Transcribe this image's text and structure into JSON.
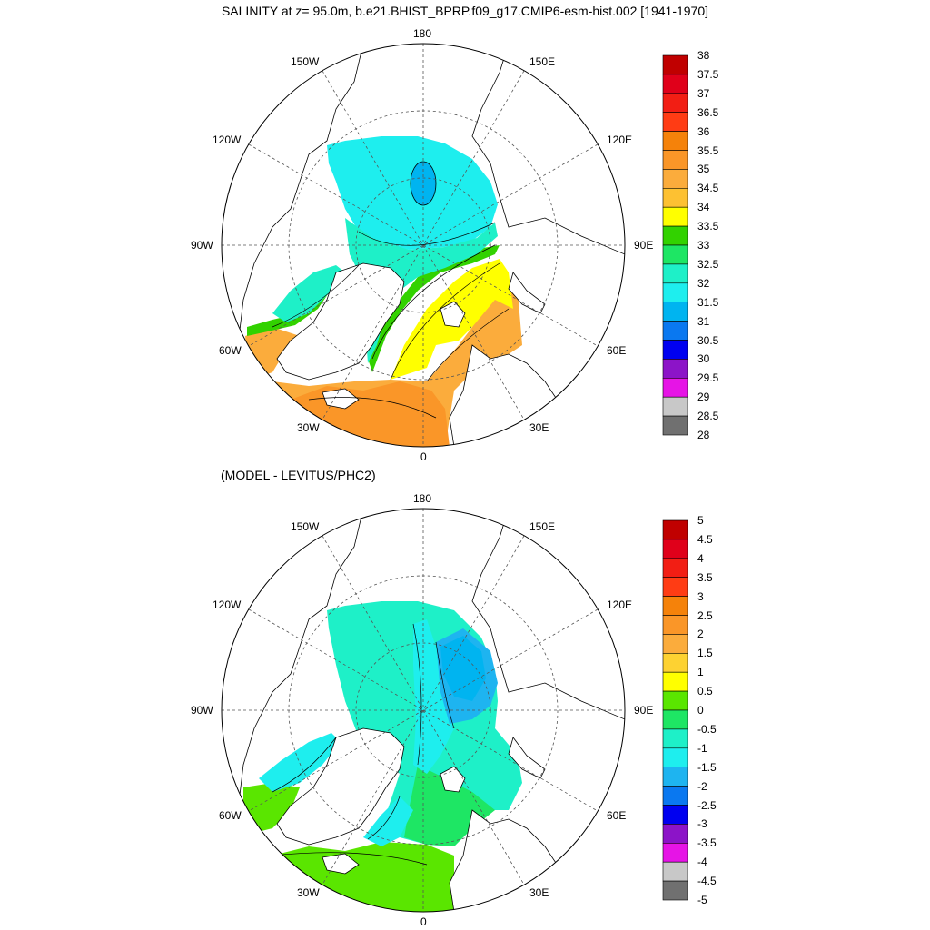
{
  "figure": {
    "title": "SALINITY at z=  95.0m, b.e21.BHIST_BPRP.f09_g17.CMIP6-esm-hist.002 [1941-1970]",
    "subtitle": "(MODEL - LEVITUS/PHC2)"
  },
  "map_labels": {
    "top": "180",
    "bottom": "0",
    "left": "90W",
    "right": "90E",
    "upper_left_1": "150W",
    "upper_left_2": "120W",
    "upper_right_1": "150E",
    "upper_right_2": "120E",
    "lower_left_1": "60W",
    "lower_left_2": "30W",
    "lower_right_1": "60E",
    "lower_right_2": "30E"
  },
  "top_panel": {
    "colorbar_labels": [
      "38",
      "37.5",
      "37",
      "36.5",
      "36",
      "35.5",
      "35",
      "34.5",
      "34",
      "33.5",
      "33",
      "32.5",
      "32",
      "31.5",
      "31",
      "30.5",
      "30",
      "29.5",
      "29",
      "28.5",
      "28"
    ],
    "colorbar_colors": [
      "#c00000",
      "#e0001a",
      "#f21e14",
      "#ff3c14",
      "#f5820a",
      "#fa9628",
      "#fbac3c",
      "#fdc132",
      "#ffff00",
      "#32d200",
      "#1ee664",
      "#1ef0c8",
      "#1eeeee",
      "#00b4f0",
      "#0a78f0",
      "#0000f0",
      "#8c14c8",
      "#e614e6",
      "#c8c8c8",
      "#707070"
    ]
  },
  "bottom_panel": {
    "colorbar_labels": [
      "5",
      "4.5",
      "4",
      "3.5",
      "3",
      "2.5",
      "2",
      "1.5",
      "1",
      "0.5",
      "0",
      "-0.5",
      "-1",
      "-1.5",
      "-2",
      "-2.5",
      "-3",
      "-3.5",
      "-4",
      "-4.5",
      "-5"
    ],
    "colorbar_colors": [
      "#c00000",
      "#e0001a",
      "#f21e14",
      "#ff3c14",
      "#f5820a",
      "#fa9628",
      "#fbac3c",
      "#fdd232",
      "#ffff00",
      "#5ae600",
      "#1ee664",
      "#1ef0c8",
      "#1eeeee",
      "#1eb4f0",
      "#0a78f0",
      "#0000f0",
      "#8c14c8",
      "#e614e6",
      "#c8c8c8",
      "#707070"
    ]
  },
  "field_colors": {
    "land": "#ffffff",
    "top_cyan": "#1eeeee",
    "top_aqua": "#1ef0c8",
    "top_blue": "#00b4f0",
    "top_green": "#32d200",
    "top_lightgreen": "#1ee664",
    "top_yellow": "#ffff00",
    "top_orange": "#fbac3c",
    "top_darkorange": "#fa9628",
    "bot_cyan": "#1eeeee",
    "bot_aqua": "#1ef0c8",
    "bot_blue": "#1eb4f0",
    "bot_green": "#5ae600",
    "bot_lightgreen": "#1ee664"
  }
}
